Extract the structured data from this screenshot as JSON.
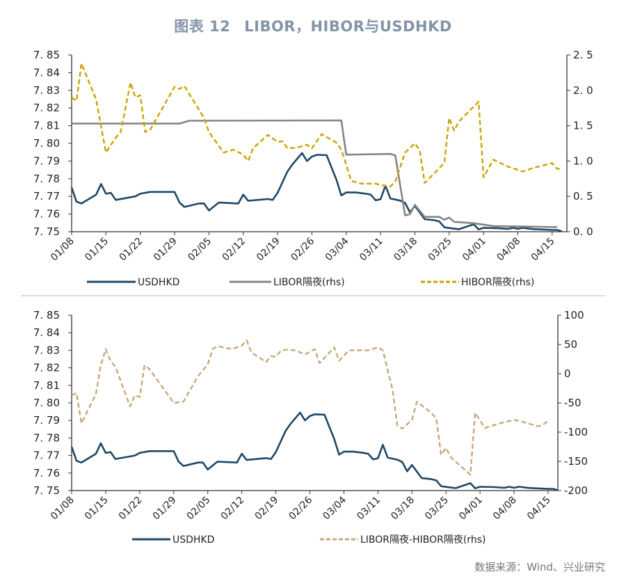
{
  "title": {
    "label": "图表 12",
    "text": "LIBOR，HIBOR与USDHKD"
  },
  "source": "数据来源：Wind、兴业研究",
  "colors": {
    "usdhkd": "#1f4766",
    "libor": "#858585",
    "hibor": "#c9a400",
    "spread": "#c4aa7a",
    "title": "#8494a8"
  },
  "chart_data": [
    {
      "type": "line",
      "title": "",
      "x_ticks": [
        "01/08",
        "01/15",
        "01/22",
        "01/29",
        "02/05",
        "02/12",
        "02/19",
        "02/26",
        "03/04",
        "03/11",
        "03/18",
        "03/25",
        "04/01",
        "04/08",
        "04/15"
      ],
      "xlim": [
        "01/08",
        "04/18"
      ],
      "ylim_left": [
        7.75,
        7.85
      ],
      "y_ticks_left": [
        "7. 75",
        "7. 76",
        "7. 77",
        "7. 78",
        "7. 79",
        "7. 80",
        "7. 81",
        "7. 82",
        "7. 83",
        "7. 84",
        "7. 85"
      ],
      "ylim_right": [
        0,
        2.5
      ],
      "y_ticks_right": [
        "0. 0",
        "0. 5",
        "1. 0",
        "1. 5",
        "2. 0",
        "2. 5"
      ],
      "legend_position": "bottom",
      "series": [
        {
          "name": "USDHKD",
          "axis": "left",
          "style": "solid",
          "color_key": "usdhkd",
          "points": [
            [
              "01/08",
              7.775
            ],
            [
              "01/09",
              7.767
            ],
            [
              "01/10",
              7.766
            ],
            [
              "01/13",
              7.771
            ],
            [
              "01/14",
              7.777
            ],
            [
              "01/15",
              7.7715
            ],
            [
              "01/16",
              7.772
            ],
            [
              "01/17",
              7.768
            ],
            [
              "01/21",
              7.77
            ],
            [
              "01/22",
              7.7715
            ],
            [
              "01/24",
              7.7725
            ],
            [
              "01/29",
              7.7725
            ],
            [
              "01/30",
              7.7665
            ],
            [
              "01/31",
              7.764
            ],
            [
              "02/03",
              7.766
            ],
            [
              "02/04",
              7.766
            ],
            [
              "02/05",
              7.762
            ],
            [
              "02/07",
              7.7665
            ],
            [
              "02/11",
              7.766
            ],
            [
              "02/12",
              7.771
            ],
            [
              "02/13",
              7.7675
            ],
            [
              "02/17",
              7.7685
            ],
            [
              "02/18",
              7.768
            ],
            [
              "02/19",
              7.772
            ],
            [
              "02/21",
              7.784
            ],
            [
              "02/22",
              7.788
            ],
            [
              "02/24",
              7.7945
            ],
            [
              "02/25",
              7.79
            ],
            [
              "02/26",
              7.7925
            ],
            [
              "02/27",
              7.7935
            ],
            [
              "02/29",
              7.7933
            ],
            [
              "03/02",
              7.7794
            ],
            [
              "03/03",
              7.7705
            ],
            [
              "03/04",
              7.7722
            ],
            [
              "03/06",
              7.7722
            ],
            [
              "03/08",
              7.7715
            ],
            [
              "03/09",
              7.771
            ],
            [
              "03/10",
              7.7678
            ],
            [
              "03/11",
              7.7684
            ],
            [
              "03/12",
              7.7761
            ],
            [
              "03/13",
              7.7688
            ],
            [
              "03/15",
              7.7676
            ],
            [
              "03/16",
              7.7663
            ],
            [
              "03/17",
              7.761
            ],
            [
              "03/18",
              7.7646
            ],
            [
              "03/20",
              7.7571
            ],
            [
              "03/22",
              7.7565
            ],
            [
              "03/23",
              7.7558
            ],
            [
              "03/24",
              7.7525
            ],
            [
              "03/25",
              7.7521
            ],
            [
              "03/27",
              7.7514
            ],
            [
              "03/30",
              7.7542
            ],
            [
              "03/31",
              7.7513
            ],
            [
              "04/01",
              7.7522
            ],
            [
              "04/04",
              7.752
            ],
            [
              "04/06",
              7.7516
            ],
            [
              "04/07",
              7.7522
            ],
            [
              "04/08",
              7.7516
            ],
            [
              "04/09",
              7.7522
            ],
            [
              "04/11",
              7.7515
            ],
            [
              "04/15",
              7.751
            ],
            [
              "04/16",
              7.751
            ],
            [
              "04/17",
              7.7502
            ]
          ]
        },
        {
          "name": "LIBOR隔夜(rhs)",
          "axis": "right",
          "style": "solid",
          "color_key": "libor",
          "points": [
            [
              "01/08",
              1.53
            ],
            [
              "01/30",
              1.53
            ],
            [
              "02/01",
              1.57
            ],
            [
              "03/03",
              1.575
            ],
            [
              "03/04",
              1.09
            ],
            [
              "03/13",
              1.1
            ],
            [
              "03/14",
              1.08
            ],
            [
              "03/16",
              0.23
            ],
            [
              "03/17",
              0.25
            ],
            [
              "03/18",
              0.38
            ],
            [
              "03/20",
              0.21
            ],
            [
              "03/23",
              0.21
            ],
            [
              "03/24",
              0.17
            ],
            [
              "03/25",
              0.2
            ],
            [
              "03/26",
              0.14
            ],
            [
              "03/28",
              0.13
            ],
            [
              "03/30",
              0.12
            ],
            [
              "04/01",
              0.1
            ],
            [
              "04/03",
              0.08
            ],
            [
              "04/08",
              0.075
            ],
            [
              "04/16",
              0.065
            ]
          ]
        },
        {
          "name": "HIBOR隔夜(rhs)",
          "axis": "right",
          "style": "dashed",
          "color_key": "hibor",
          "points": [
            [
              "01/08",
              1.9
            ],
            [
              "01/09",
              1.85
            ],
            [
              "01/10",
              2.38
            ],
            [
              "01/13",
              1.87
            ],
            [
              "01/15",
              1.12
            ],
            [
              "01/17",
              1.33
            ],
            [
              "01/18",
              1.41
            ],
            [
              "01/20",
              2.11
            ],
            [
              "01/21",
              1.9
            ],
            [
              "01/22",
              1.93
            ],
            [
              "01/23",
              1.41
            ],
            [
              "01/24",
              1.44
            ],
            [
              "01/29",
              2.05
            ],
            [
              "01/30",
              2.02
            ],
            [
              "01/31",
              2.06
            ],
            [
              "02/04",
              1.61
            ],
            [
              "02/05",
              1.41
            ],
            [
              "02/08",
              1.12
            ],
            [
              "02/10",
              1.16
            ],
            [
              "02/12",
              1.09
            ],
            [
              "02/13",
              1.0
            ],
            [
              "02/14",
              1.18
            ],
            [
              "02/17",
              1.37
            ],
            [
              "02/19",
              1.27
            ],
            [
              "02/20",
              1.28
            ],
            [
              "02/21",
              1.18
            ],
            [
              "02/23",
              1.19
            ],
            [
              "02/25",
              1.23
            ],
            [
              "02/26",
              1.18
            ],
            [
              "02/28",
              1.38
            ],
            [
              "03/02",
              1.26
            ],
            [
              "03/03",
              1.16
            ],
            [
              "03/04",
              0.95
            ],
            [
              "03/05",
              0.72
            ],
            [
              "03/07",
              0.68
            ],
            [
              "03/10",
              0.68
            ],
            [
              "03/11",
              0.66
            ],
            [
              "03/13",
              0.64
            ],
            [
              "03/14",
              0.71
            ],
            [
              "03/16",
              1.12
            ],
            [
              "03/18",
              1.25
            ],
            [
              "03/19",
              1.15
            ],
            [
              "03/20",
              0.69
            ],
            [
              "03/24",
              0.97
            ],
            [
              "03/25",
              1.61
            ],
            [
              "03/26",
              1.43
            ],
            [
              "03/27",
              1.56
            ],
            [
              "03/31",
              1.84
            ],
            [
              "04/01",
              0.77
            ],
            [
              "04/03",
              1.02
            ],
            [
              "04/06",
              0.92
            ],
            [
              "04/07",
              0.9
            ],
            [
              "04/09",
              0.85
            ],
            [
              "04/11",
              0.9
            ],
            [
              "04/15",
              0.97
            ],
            [
              "04/16",
              0.89
            ],
            [
              "04/17",
              0.89
            ]
          ]
        }
      ]
    },
    {
      "type": "line",
      "title": "",
      "x_ticks": [
        "01/08",
        "01/15",
        "01/22",
        "01/29",
        "02/05",
        "02/12",
        "02/19",
        "02/26",
        "03/04",
        "03/11",
        "03/18",
        "03/25",
        "04/01",
        "04/08",
        "04/15"
      ],
      "xlim": [
        "01/08",
        "04/17"
      ],
      "ylim_left": [
        7.75,
        7.85
      ],
      "y_ticks_left": [
        "7. 75",
        "7. 76",
        "7. 77",
        "7. 78",
        "7. 79",
        "7. 80",
        "7. 81",
        "7. 82",
        "7. 83",
        "7. 84",
        "7. 85"
      ],
      "ylim_right": [
        -200,
        100
      ],
      "y_ticks_right": [
        "-200",
        "-150",
        "-100",
        "-50",
        "0",
        "50",
        "100"
      ],
      "legend_position": "bottom",
      "series": [
        {
          "name": "USDHKD",
          "axis": "left",
          "style": "solid",
          "color_key": "usdhkd",
          "same_as": "USDHKD"
        },
        {
          "name": "LIBOR隔夜-HIBOR隔夜(rhs)",
          "axis": "right",
          "style": "dashed",
          "color_key": "spread",
          "points": [
            [
              "01/08",
              -37
            ],
            [
              "01/09",
              -33
            ],
            [
              "01/10",
              -85
            ],
            [
              "01/13",
              -35
            ],
            [
              "01/14",
              14
            ],
            [
              "01/15",
              42
            ],
            [
              "01/16",
              22
            ],
            [
              "01/17",
              12
            ],
            [
              "01/20",
              -56
            ],
            [
              "01/21",
              -37
            ],
            [
              "01/22",
              -40
            ],
            [
              "01/23",
              14
            ],
            [
              "01/24",
              8
            ],
            [
              "01/29",
              -50
            ],
            [
              "01/31",
              -48
            ],
            [
              "02/03",
              -4
            ],
            [
              "02/05",
              16
            ],
            [
              "02/06",
              42
            ],
            [
              "02/07",
              47
            ],
            [
              "02/10",
              42
            ],
            [
              "02/12",
              48
            ],
            [
              "02/13",
              57
            ],
            [
              "02/14",
              36
            ],
            [
              "02/17",
              20
            ],
            [
              "02/18",
              30
            ],
            [
              "02/19",
              29
            ],
            [
              "02/20",
              39
            ],
            [
              "02/21",
              41
            ],
            [
              "02/23",
              40
            ],
            [
              "02/25",
              33
            ],
            [
              "02/27",
              42
            ],
            [
              "02/28",
              18
            ],
            [
              "03/02",
              45
            ],
            [
              "03/03",
              22
            ],
            [
              "03/05",
              40
            ],
            [
              "03/09",
              40
            ],
            [
              "03/11",
              45
            ],
            [
              "03/12",
              40
            ],
            [
              "03/14",
              -27
            ],
            [
              "03/15",
              -89
            ],
            [
              "03/16",
              -94
            ],
            [
              "03/18",
              -79
            ],
            [
              "03/19",
              -48
            ],
            [
              "03/22",
              -67
            ],
            [
              "03/23",
              -77
            ],
            [
              "03/24",
              -139
            ],
            [
              "03/25",
              -127
            ],
            [
              "03/26",
              -143
            ],
            [
              "03/30",
              -173
            ],
            [
              "03/31",
              -67
            ],
            [
              "04/02",
              -93
            ],
            [
              "04/05",
              -85
            ],
            [
              "04/08",
              -79
            ],
            [
              "04/10",
              -83
            ],
            [
              "04/13",
              -90
            ],
            [
              "04/14",
              -87
            ],
            [
              "04/15",
              -81
            ]
          ]
        }
      ]
    }
  ]
}
